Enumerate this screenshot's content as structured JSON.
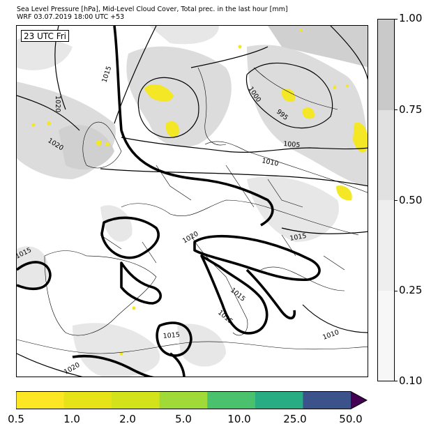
{
  "header": {
    "title_line1": "Sea Level Pressure [hPa], Mid-Level Cloud Cover, Total prec. in the last hour [mm]",
    "title_line2": "WRF 03.07.2019 18:00 UTC +53"
  },
  "map": {
    "time_label": "23 UTC Fri",
    "isobar_labels": [
      "1015",
      "1020",
      "1020",
      "1000",
      "995",
      "1005",
      "1010",
      "1015",
      "1015",
      "1020",
      "1015",
      "1015",
      "1015",
      "1010",
      "1020"
    ],
    "colors": {
      "cloud_light": "#e3e3e3",
      "cloud_mid": "#d0d0d0",
      "cloud_dark": "#bdbdbd",
      "precip": "#f3e726",
      "coast": "#000000"
    }
  },
  "cloud_colorbar": {
    "ticks": [
      "0.10",
      "0.25",
      "0.50",
      "0.75",
      "1.00"
    ],
    "colors": [
      "#f7f7f7",
      "#eeeeee",
      "#e1e1e1",
      "#c9c9c9"
    ]
  },
  "precip_colorbar": {
    "ticks": [
      "0.5",
      "1.0",
      "2.0",
      "5.0",
      "10.0",
      "25.0",
      "50.0"
    ],
    "colors": [
      "#fde725",
      "#e6e419",
      "#d2e21b",
      "#a0da39",
      "#4ac16d",
      "#27ad81",
      "#3b528b",
      "#440154"
    ]
  }
}
